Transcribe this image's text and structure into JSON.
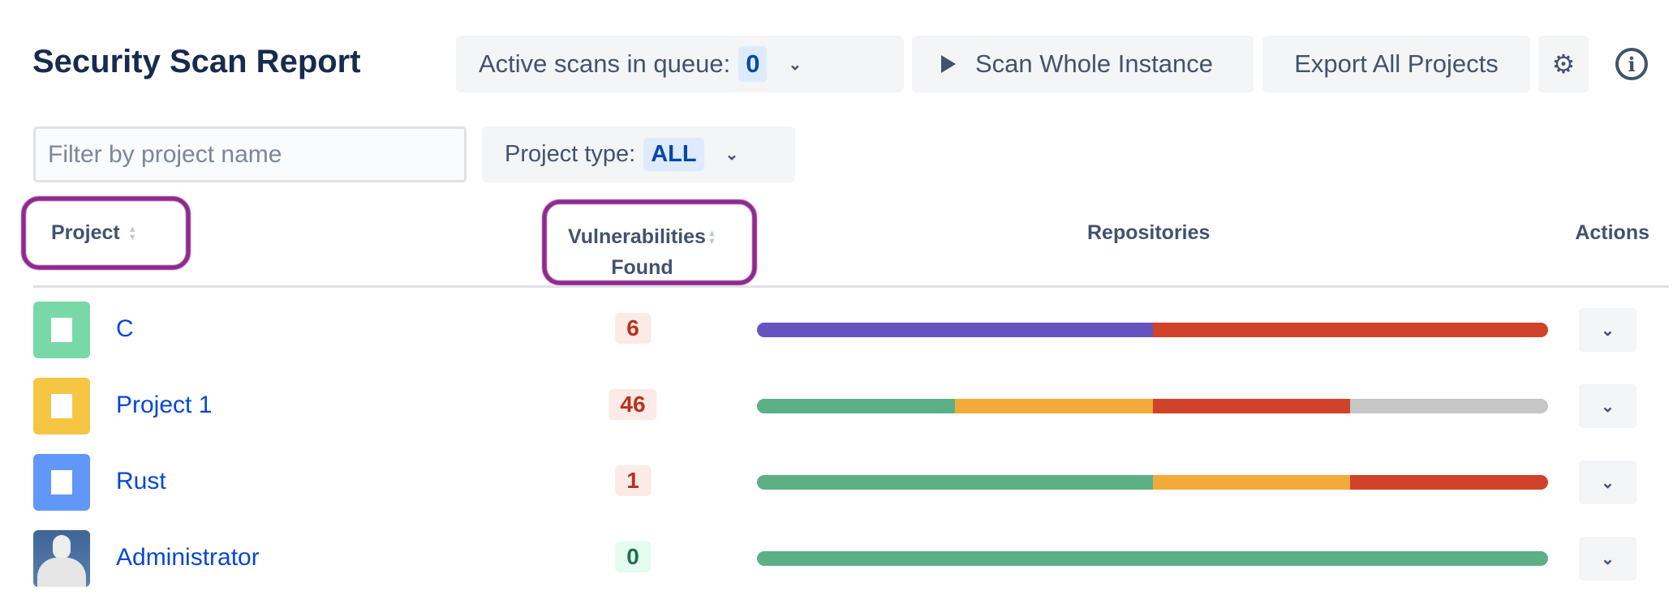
{
  "header": {
    "title": "Security Scan Report",
    "queue_label": "Active scans in queue:",
    "queue_count": "0",
    "scan_label": "Scan Whole Instance",
    "export_label": "Export All Projects"
  },
  "filters": {
    "placeholder": "Filter by project name",
    "type_label": "Project type:",
    "type_value": "ALL"
  },
  "columns": {
    "project": "Project",
    "vuln_line1": "Vulnerabilities",
    "vuln_line2": "Found",
    "repos": "Repositories",
    "actions": "Actions"
  },
  "colors": {
    "critical": "#6554c0",
    "high": "#d0432a",
    "medium": "#f2ab3a",
    "low": "#5cb085",
    "none": "#c6c6c6"
  },
  "rows": [
    {
      "name": "C",
      "icon": "folder-icon",
      "icon_color": "#79d8a7",
      "vulns": "6",
      "status": "bad",
      "segments": [
        [
          "critical",
          50
        ],
        [
          "high",
          50
        ]
      ]
    },
    {
      "name": "Project 1",
      "icon": "folder-icon",
      "icon_color": "#f7c544",
      "vulns": "46",
      "status": "bad",
      "segments": [
        [
          "low",
          25
        ],
        [
          "medium",
          25
        ],
        [
          "high",
          25
        ],
        [
          "none",
          25
        ]
      ]
    },
    {
      "name": "Rust",
      "icon": "folder-icon",
      "icon_color": "#6198f7",
      "vulns": "1",
      "status": "bad",
      "segments": [
        [
          "low",
          50
        ],
        [
          "medium",
          25
        ],
        [
          "high",
          25
        ]
      ]
    },
    {
      "name": "Administrator",
      "icon": "avatar-icon",
      "icon_color": "#3f6598",
      "vulns": "0",
      "status": "good",
      "segments": [
        [
          "low",
          100
        ]
      ]
    }
  ]
}
